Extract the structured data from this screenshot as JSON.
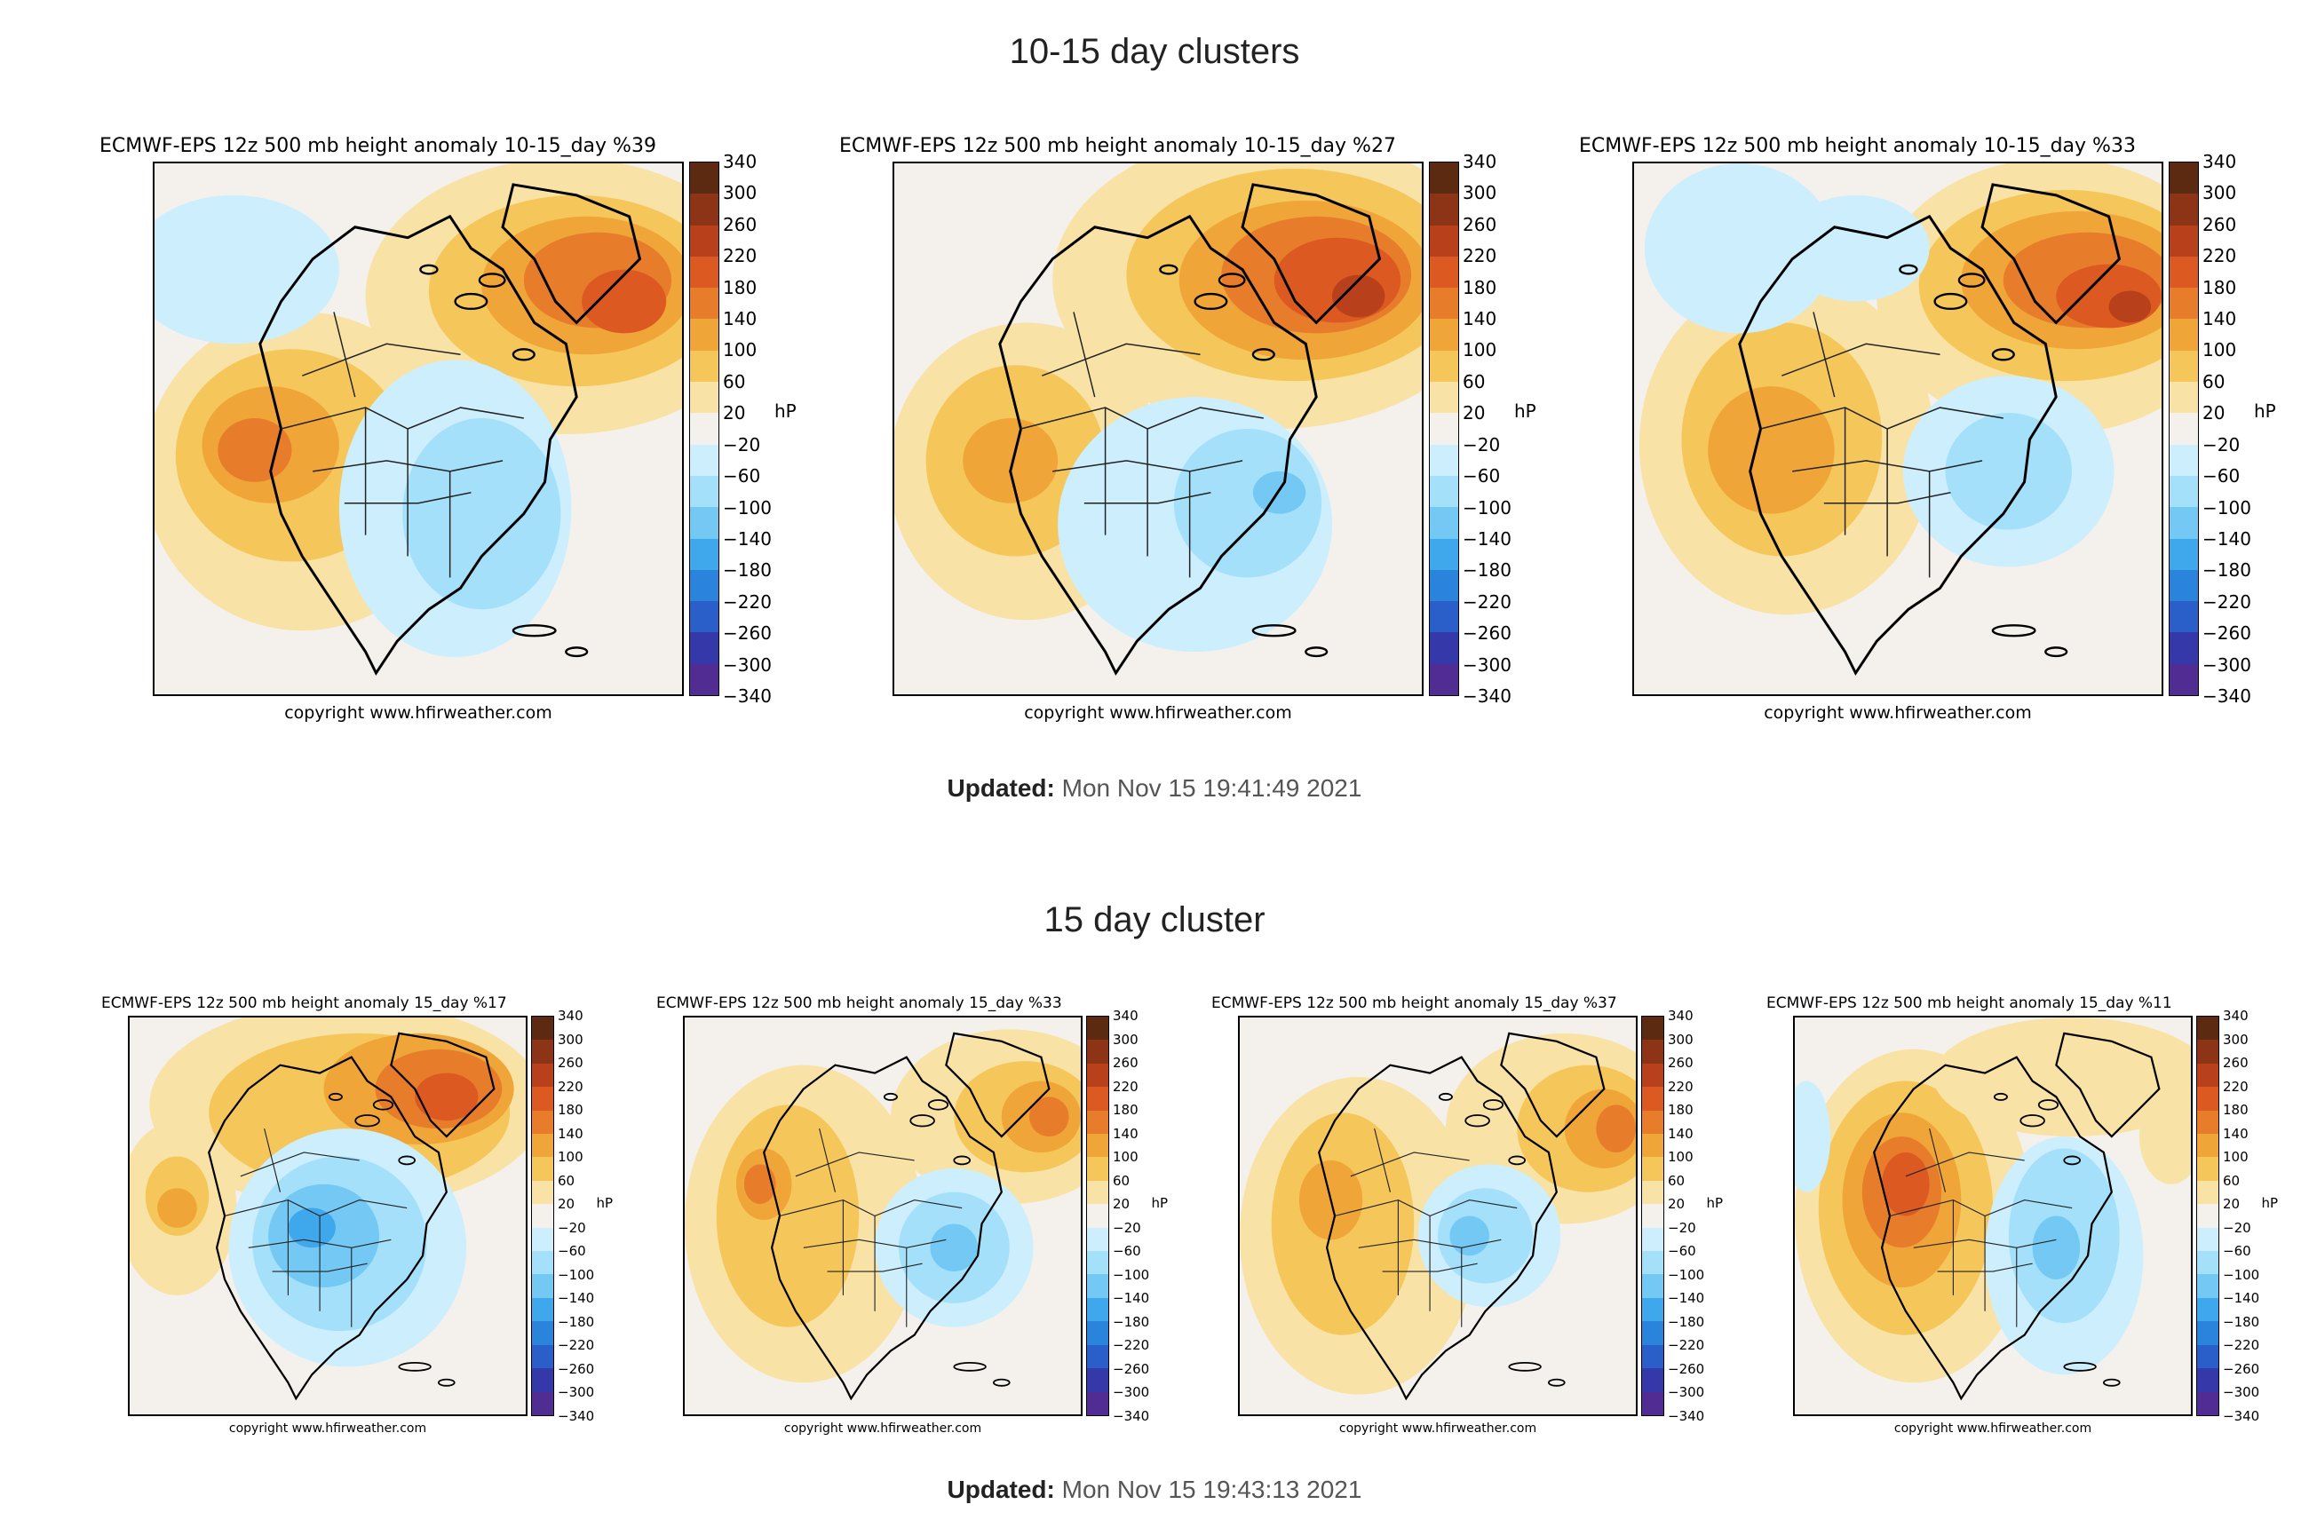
{
  "section1": {
    "title": "10-15 day clusters",
    "updated_label": "Updated:",
    "updated_value": "Mon Nov 15 19:41:49 2021",
    "maps": [
      {
        "title": "ECMWF-EPS 12z 500 mb height anomaly 10-15_day %39",
        "copyright": "copyright www.hfirweather.com",
        "unit": "hP"
      },
      {
        "title": "ECMWF-EPS 12z 500 mb height anomaly 10-15_day %27",
        "copyright": "copyright www.hfirweather.com",
        "unit": "hP"
      },
      {
        "title": "ECMWF-EPS 12z 500 mb height anomaly 10-15_day %33",
        "copyright": "copyright www.hfirweather.com",
        "unit": "hP"
      }
    ]
  },
  "section2": {
    "title": "15 day cluster",
    "updated_label": "Updated:",
    "updated_value": "Mon Nov 15 19:43:13 2021",
    "maps": [
      {
        "title": "ECMWF-EPS 12z 500 mb height anomaly 15_day %17",
        "copyright": "copyright www.hfirweather.com",
        "unit": "hP"
      },
      {
        "title": "ECMWF-EPS 12z 500 mb height anomaly 15_day %33",
        "copyright": "copyright www.hfirweather.com",
        "unit": "hP"
      },
      {
        "title": "ECMWF-EPS 12z 500 mb height anomaly 15_day %37",
        "copyright": "copyright www.hfirweather.com",
        "unit": "hP"
      },
      {
        "title": "ECMWF-EPS 12z 500 mb height anomaly 15_day %11",
        "copyright": "copyright www.hfirweather.com",
        "unit": "hP"
      }
    ]
  },
  "colorbar": {
    "ticks": [
      "340",
      "300",
      "260",
      "220",
      "180",
      "140",
      "100",
      "60",
      "20",
      "−20",
      "−60",
      "−100",
      "−140",
      "−180",
      "−220",
      "−260",
      "−300",
      "−340"
    ],
    "colors": [
      "#5c2a10",
      "#8e3416",
      "#b8401b",
      "#dc5a22",
      "#e77d2b",
      "#f0a538",
      "#f5c75a",
      "#f8e2a6",
      "#f4f1ec",
      "#cdeefc",
      "#a5e0fa",
      "#73c9f3",
      "#3fa8ec",
      "#2a84dc",
      "#2a5fc9",
      "#3538a8",
      "#512c92"
    ]
  }
}
